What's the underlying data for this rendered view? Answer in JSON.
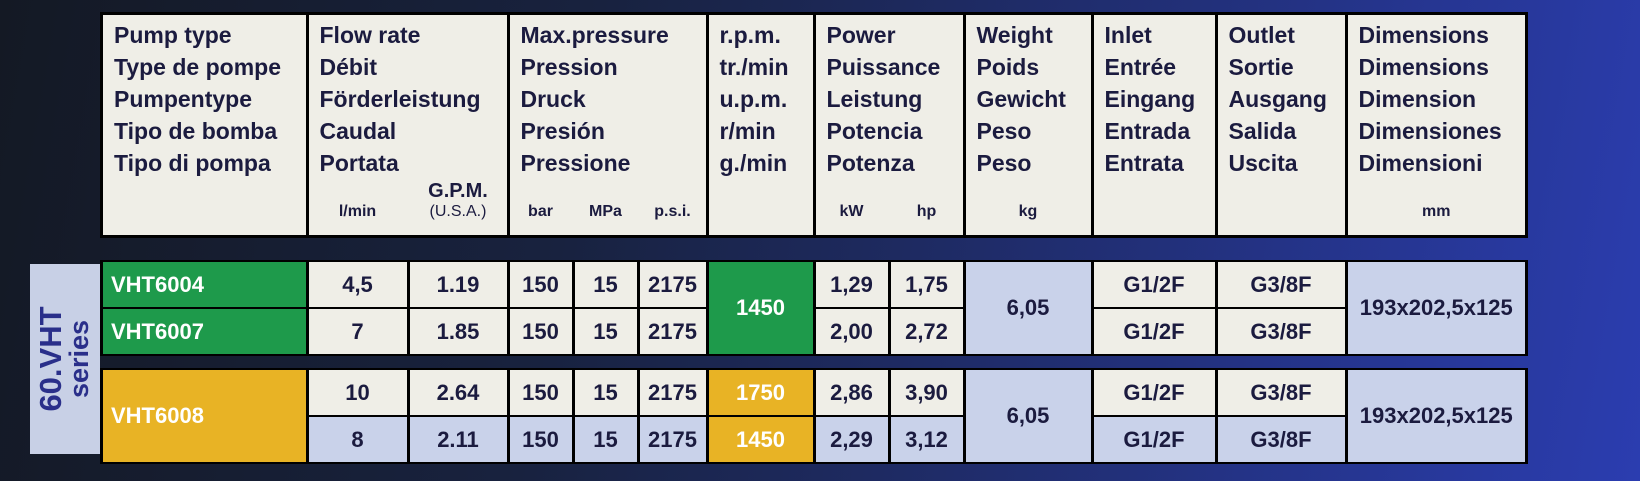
{
  "header": {
    "columns": [
      {
        "lines": [
          "Pump type",
          "Type de pompe",
          "Pumpentype",
          "Tipo de bomba",
          "Tipo di pompa"
        ]
      },
      {
        "lines": [
          "Flow rate",
          "Débit",
          "Förderleistung",
          "Caudal",
          "Portata"
        ],
        "units": [
          "l/min",
          "G.P.M."
        ],
        "unit_note": "(U.S.A.)"
      },
      {
        "lines": [
          "Max.pressure",
          "Pression",
          "Druck",
          "Presión",
          "Pressione"
        ],
        "units": [
          "bar",
          "MPa",
          "p.s.i."
        ]
      },
      {
        "lines": [
          "r.p.m.",
          "tr./min",
          "u.p.m.",
          "r/min",
          "g./min"
        ]
      },
      {
        "lines": [
          "Power",
          "Puissance",
          "Leistung",
          "Potencia",
          "Potenza"
        ],
        "units": [
          "kW",
          "hp"
        ]
      },
      {
        "lines": [
          "Weight",
          "Poids",
          "Gewicht",
          "Peso",
          "Peso"
        ],
        "units": [
          "kg"
        ]
      },
      {
        "lines": [
          "Inlet",
          "Entrée",
          "Eingang",
          "Entrada",
          "Entrata"
        ]
      },
      {
        "lines": [
          "Outlet",
          "Sortie",
          "Ausgang",
          "Salida",
          "Uscita"
        ]
      },
      {
        "lines": [
          "Dimensions",
          "Dimensions",
          "Dimension",
          "Dimensiones",
          "Dimensioni"
        ],
        "units": [
          "mm"
        ]
      }
    ]
  },
  "series_label": {
    "line1": "60.VHT",
    "line2": "series"
  },
  "groups": [
    {
      "color": "#1e9a4b",
      "merged": {
        "rpm": "1450",
        "weight": "6,05",
        "dimensions": "193x202,5x125"
      },
      "rows": [
        {
          "model": "VHT6004",
          "lpm": "4,5",
          "gpm": "1.19",
          "bar": "150",
          "mpa": "15",
          "psi": "2175",
          "kw": "1,29",
          "hp": "1,75",
          "inlet": "G1/2F",
          "outlet": "G3/8F"
        },
        {
          "model": "VHT6007",
          "lpm": "7",
          "gpm": "1.85",
          "bar": "150",
          "mpa": "15",
          "psi": "2175",
          "kw": "2,00",
          "hp": "2,72",
          "inlet": "G1/2F",
          "outlet": "G3/8F"
        }
      ]
    },
    {
      "color": "#e8b325",
      "merged": {
        "model": "VHT6008",
        "weight": "6,05",
        "dimensions": "193x202,5x125"
      },
      "rows": [
        {
          "lpm": "10",
          "gpm": "2.64",
          "bar": "150",
          "mpa": "15",
          "psi": "2175",
          "rpm": "1750",
          "kw": "2,86",
          "hp": "3,90",
          "inlet": "G1/2F",
          "outlet": "G3/8F"
        },
        {
          "lpm": "8",
          "gpm": "2.11",
          "bar": "150",
          "mpa": "15",
          "psi": "2175",
          "rpm": "1450",
          "kw": "2,29",
          "hp": "3,12",
          "inlet": "G1/2F",
          "outlet": "G3/8F"
        }
      ]
    }
  ]
}
